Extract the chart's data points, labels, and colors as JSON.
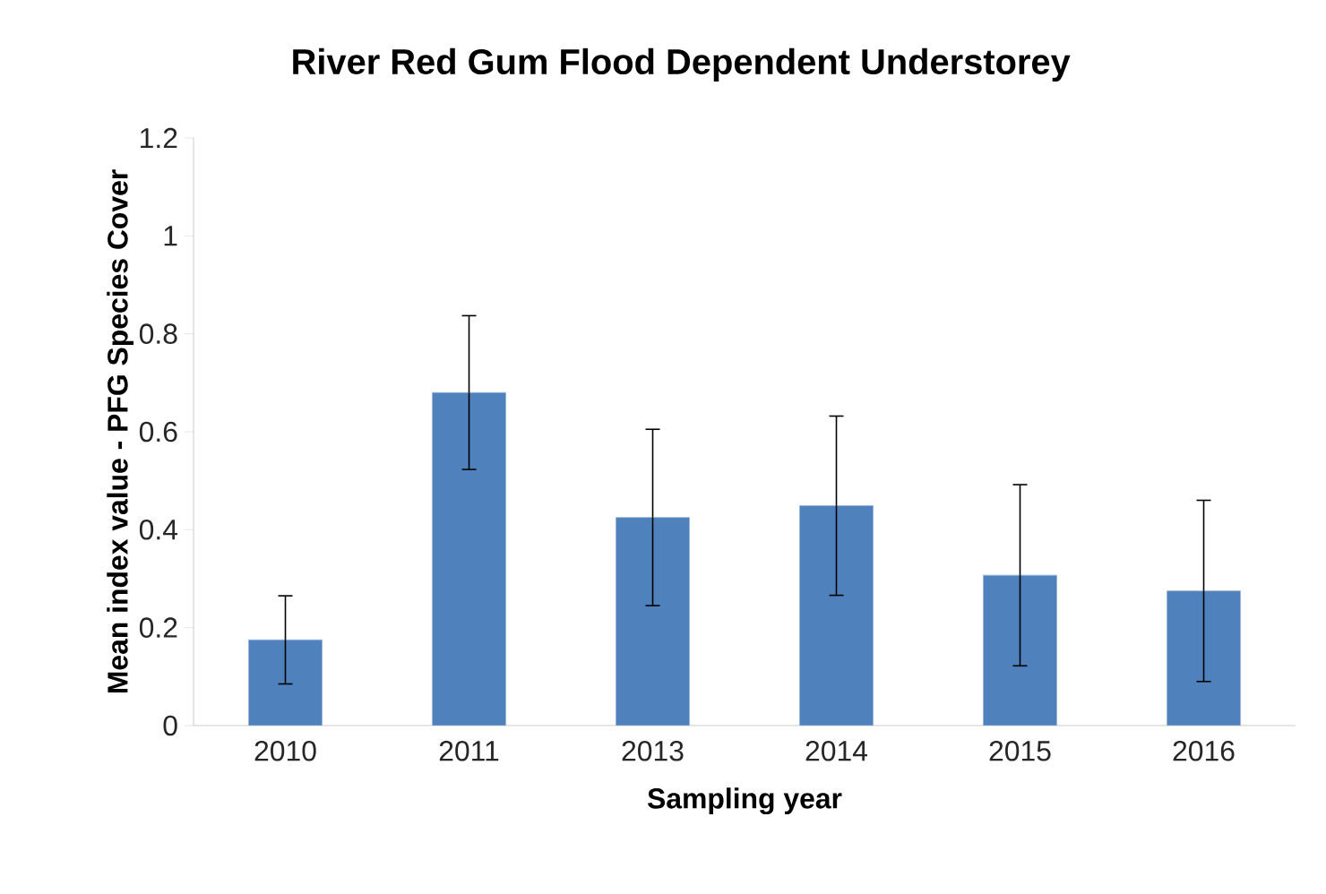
{
  "chart_data": {
    "type": "bar",
    "title": "River Red Gum Flood Dependent Understorey",
    "xlabel": "Sampling year",
    "ylabel": "Mean index value - PFG Species Cover",
    "categories": [
      "2010",
      "2011",
      "2013",
      "2014",
      "2015",
      "2016"
    ],
    "values": [
      0.175,
      0.68,
      0.425,
      0.449,
      0.307,
      0.275
    ],
    "errors": [
      0.09,
      0.157,
      0.18,
      0.183,
      0.185,
      0.185
    ],
    "color": "#4f81bd",
    "ylim": [
      0,
      1.2
    ],
    "yticks": [
      0,
      0.2,
      0.4,
      0.6,
      0.8,
      1,
      1.2
    ]
  }
}
